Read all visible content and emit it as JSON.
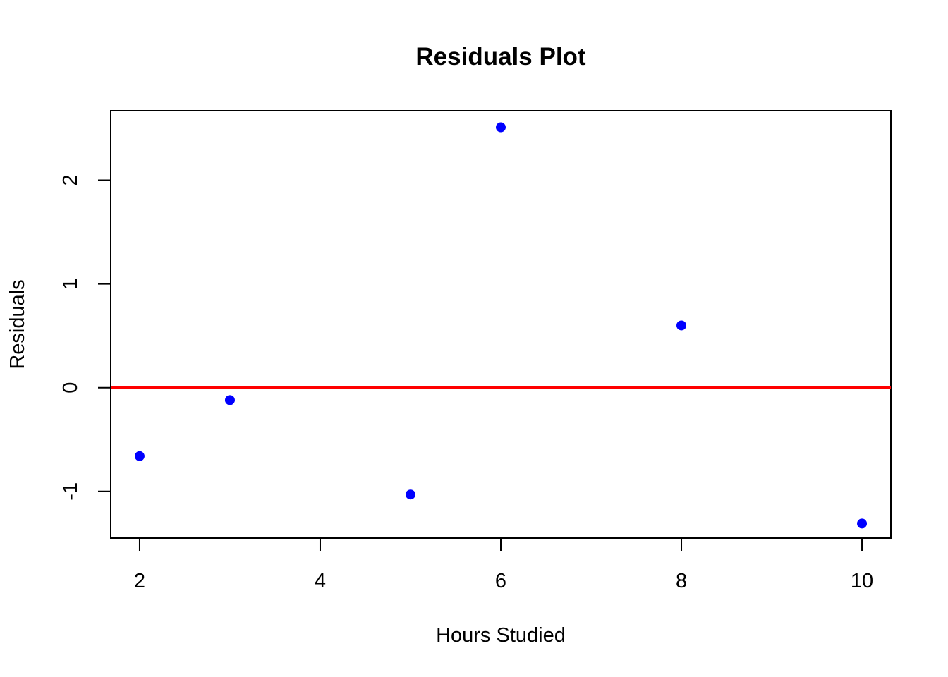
{
  "chart_data": {
    "type": "scatter",
    "title": "Residuals Plot",
    "xlabel": "Hours Studied",
    "ylabel": "Residuals",
    "xlim": [
      1.68,
      10.32
    ],
    "ylim": [
      -1.45,
      2.67
    ],
    "xticks": [
      {
        "value": 2,
        "label": "2"
      },
      {
        "value": 4,
        "label": "4"
      },
      {
        "value": 6,
        "label": "6"
      },
      {
        "value": 8,
        "label": "8"
      },
      {
        "value": 10,
        "label": "10"
      }
    ],
    "yticks": [
      {
        "value": -1,
        "label": "-1"
      },
      {
        "value": 0,
        "label": "0"
      },
      {
        "value": 1,
        "label": "1"
      },
      {
        "value": 2,
        "label": "2"
      }
    ],
    "points": [
      {
        "x": 2,
        "y": -0.66
      },
      {
        "x": 3,
        "y": -0.12
      },
      {
        "x": 5,
        "y": -1.03
      },
      {
        "x": 6,
        "y": 2.51
      },
      {
        "x": 8,
        "y": 0.6
      },
      {
        "x": 10,
        "y": -1.31
      }
    ],
    "reference_line": {
      "y": 0,
      "color": "#ff0000"
    },
    "point_color": "#0000ff",
    "grid": false,
    "legend": "none"
  }
}
